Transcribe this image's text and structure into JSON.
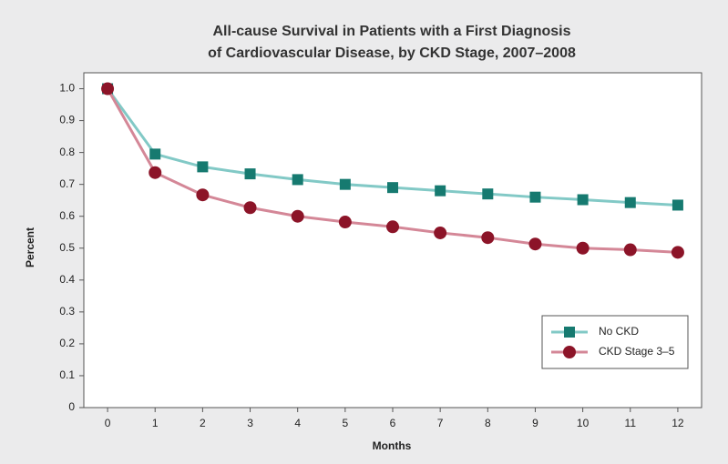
{
  "chart_data": {
    "type": "line",
    "title": [
      "All-cause Survival in Patients with a First Diagnosis",
      "of Cardiovascular Disease, by CKD Stage, 2007–2008"
    ],
    "x_label": "Months",
    "y_label": "Percent",
    "x": [
      0,
      1,
      2,
      3,
      4,
      5,
      6,
      7,
      8,
      9,
      10,
      11,
      12
    ],
    "xlim": [
      -0.5,
      12.5
    ],
    "xticks": [
      0,
      1,
      2,
      3,
      4,
      5,
      6,
      7,
      8,
      9,
      10,
      11,
      12
    ],
    "ylim": [
      0,
      1.05
    ],
    "yticks": [
      0,
      0.1,
      0.2,
      0.3,
      0.4,
      0.5,
      0.6,
      0.7,
      0.8,
      0.9,
      {
        "value": 1,
        "label": "1.0"
      }
    ],
    "grid": false,
    "legend_position": "lower right",
    "series": [
      {
        "name": "No CKD",
        "color": "#82c9c6",
        "marker_color": "#167a70",
        "marker": "square",
        "values": [
          1.0,
          0.795,
          0.755,
          0.733,
          0.715,
          0.7,
          0.69,
          0.68,
          0.67,
          0.66,
          0.652,
          0.643,
          0.635
        ]
      },
      {
        "name": "CKD Stage 3–5",
        "color": "#d48797",
        "marker_color": "#8c1428",
        "marker": "circle",
        "values": [
          1.0,
          0.737,
          0.667,
          0.627,
          0.6,
          0.582,
          0.567,
          0.548,
          0.533,
          0.513,
          0.5,
          0.495,
          0.487
        ]
      }
    ]
  }
}
